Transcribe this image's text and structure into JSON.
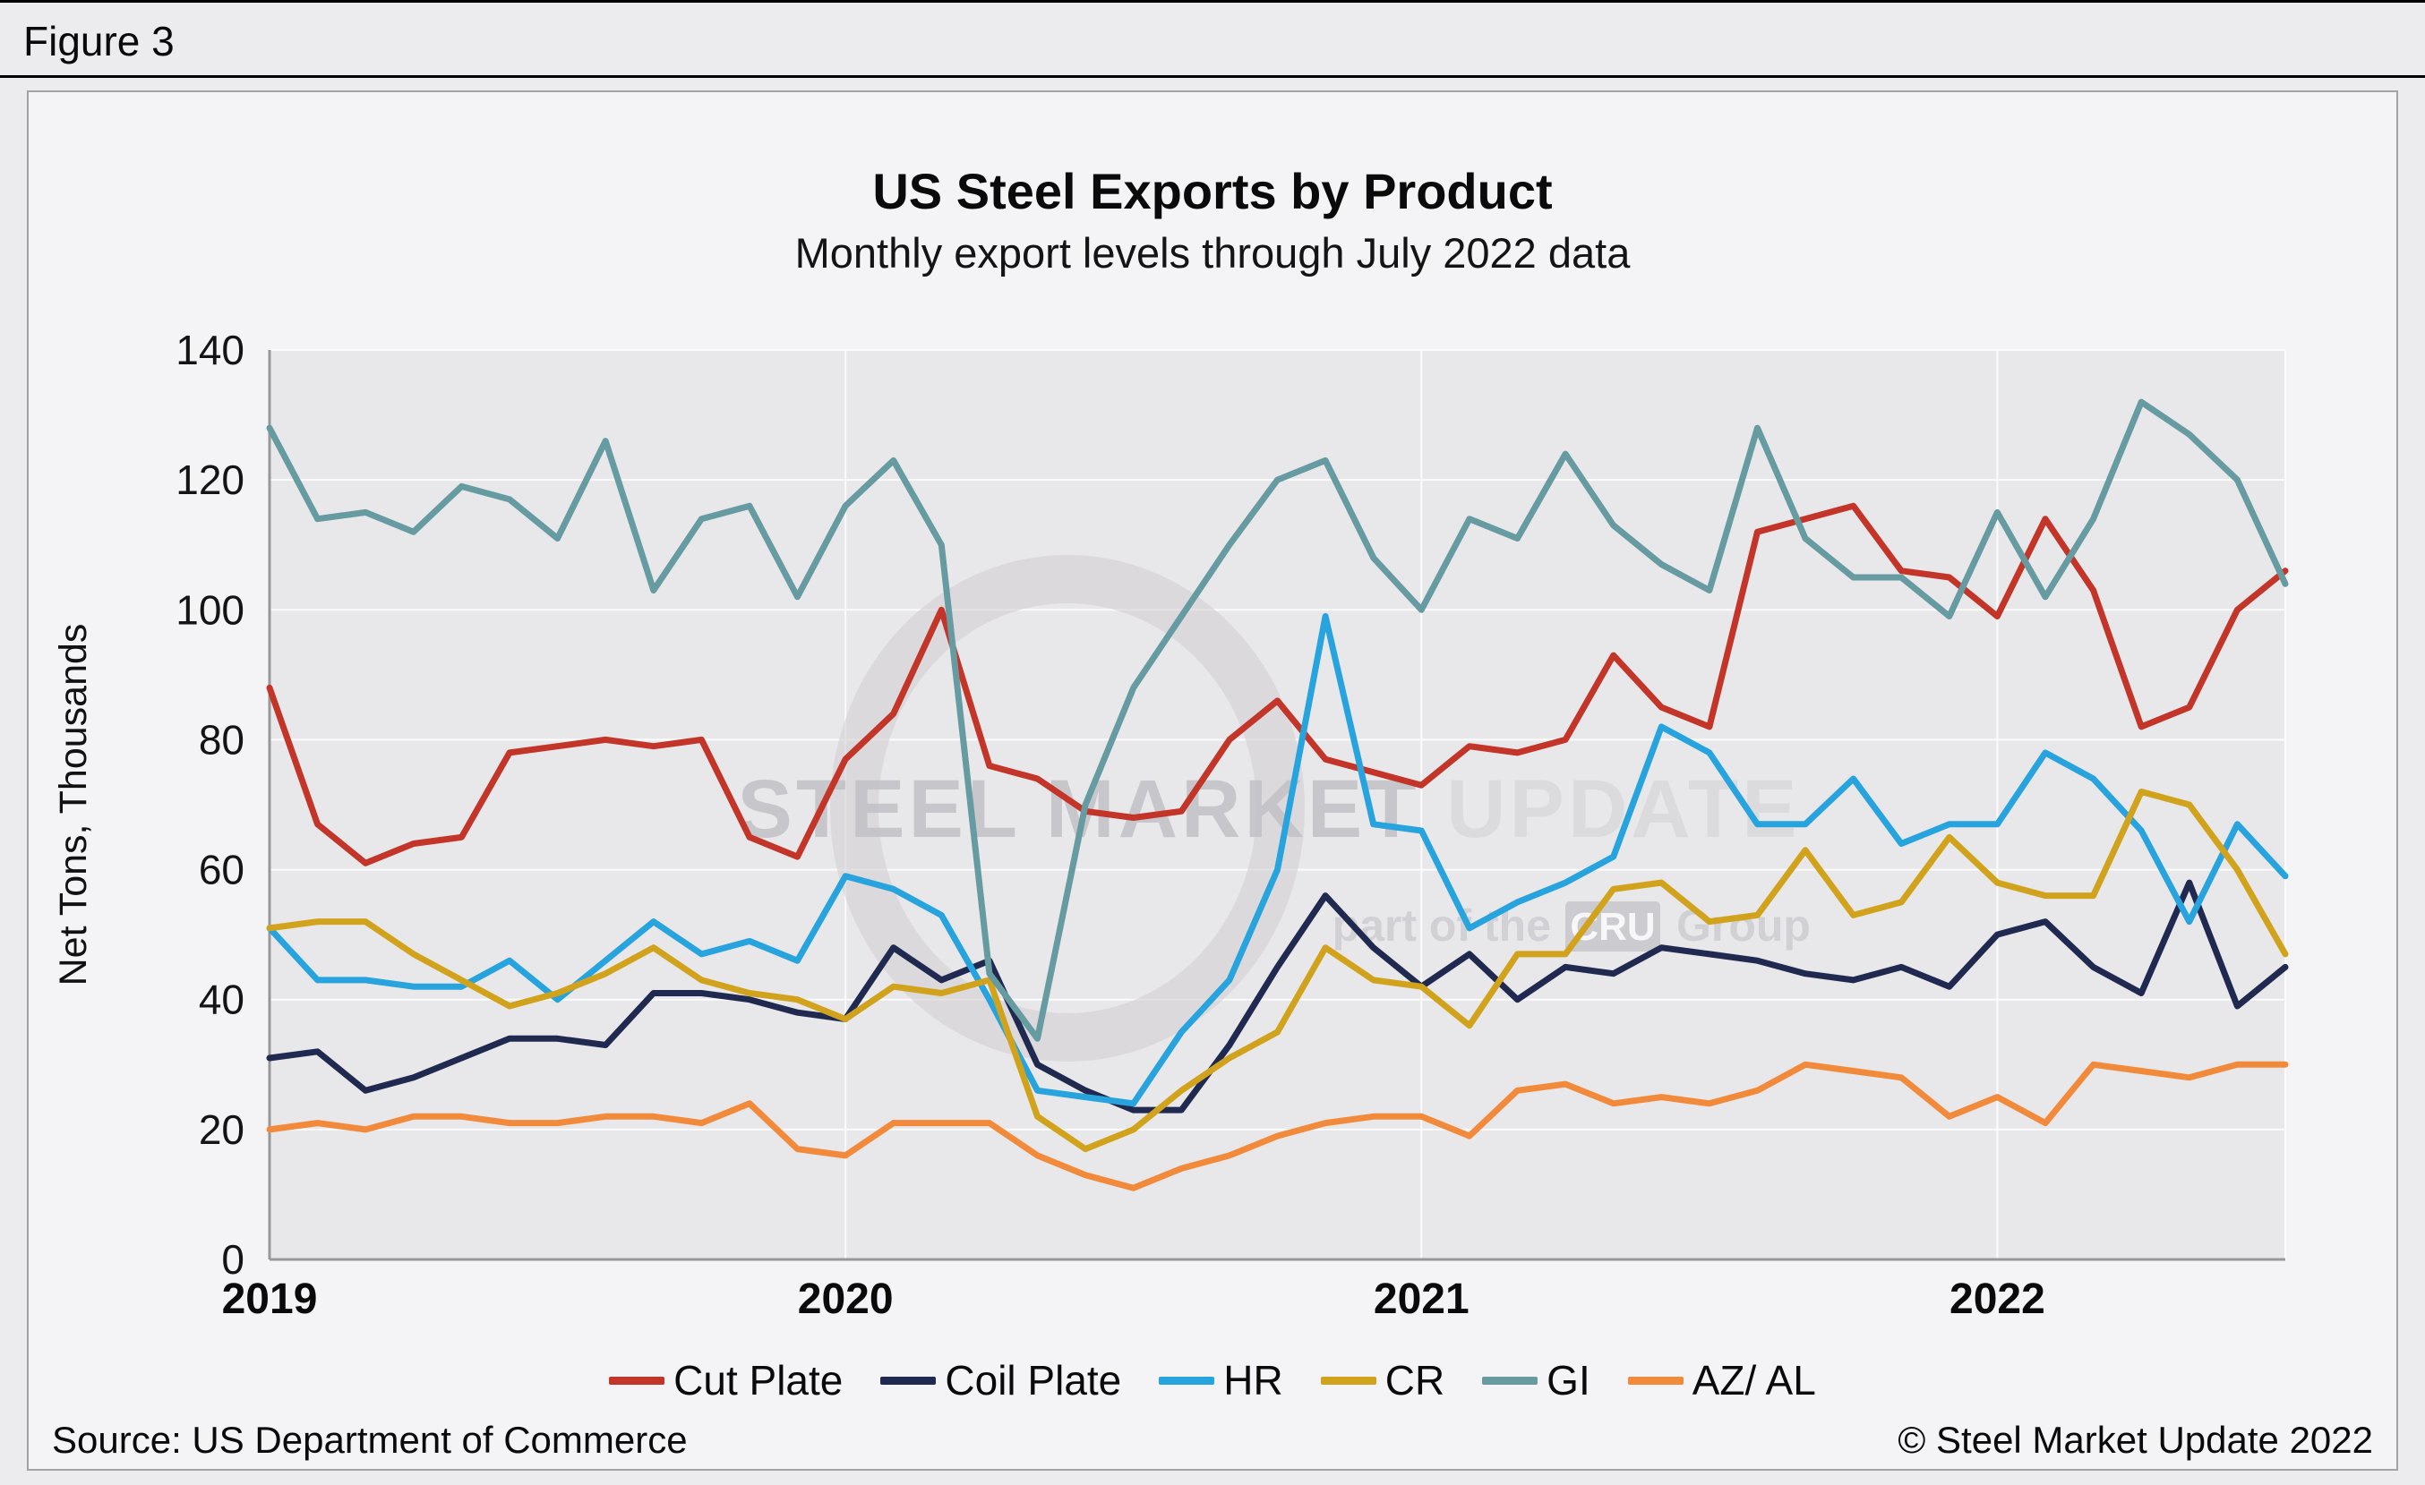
{
  "figure_label": "Figure 3",
  "title": "US Steel Exports by Product",
  "subtitle": "Monthly export levels through July 2022 data",
  "source": "Source: US Department of Commerce",
  "copyright": "© Steel Market Update 2022",
  "watermark": {
    "brand_strong": "STEEL MARKET",
    "brand_light": "UPDATE",
    "tagline_pre": "part of the",
    "tagline_box": "CRU",
    "tagline_post": "Group"
  },
  "chart_data": {
    "type": "line",
    "title": "US Steel Exports by Product",
    "subtitle": "Monthly export levels through July 2022 data",
    "ylabel": "Net Tons, Thousands",
    "xlabel": "",
    "ylim": [
      0,
      140
    ],
    "ytick_step": 20,
    "grid": true,
    "legend_position": "bottom",
    "x_year_labels": [
      "2019",
      "2020",
      "2021",
      "2022"
    ],
    "x_range": [
      "2019-01",
      "2022-07"
    ],
    "x_frequency": "monthly",
    "series": [
      {
        "name": "Cut Plate",
        "color": "#c23528",
        "values": [
          88,
          67,
          61,
          64,
          65,
          78,
          79,
          80,
          79,
          80,
          65,
          62,
          77,
          84,
          100,
          76,
          74,
          69,
          68,
          69,
          80,
          86,
          77,
          75,
          73,
          79,
          78,
          80,
          93,
          85,
          82,
          112,
          114,
          116,
          106,
          105,
          99,
          114,
          103,
          82,
          85,
          100,
          106
        ]
      },
      {
        "name": "Coil Plate",
        "color": "#20294f",
        "values": [
          31,
          32,
          26,
          28,
          31,
          34,
          34,
          33,
          41,
          41,
          40,
          38,
          37,
          48,
          43,
          46,
          30,
          26,
          23,
          23,
          33,
          45,
          56,
          48,
          42,
          47,
          40,
          45,
          44,
          48,
          47,
          46,
          44,
          43,
          45,
          42,
          50,
          52,
          45,
          41,
          58,
          39,
          45
        ]
      },
      {
        "name": "HR",
        "color": "#27a3dd",
        "values": [
          51,
          43,
          43,
          42,
          42,
          46,
          40,
          46,
          52,
          47,
          49,
          46,
          59,
          57,
          53,
          40,
          26,
          25,
          24,
          35,
          43,
          60,
          99,
          67,
          66,
          51,
          55,
          58,
          62,
          82,
          78,
          67,
          67,
          74,
          64,
          67,
          67,
          78,
          74,
          66,
          52,
          67,
          59
        ]
      },
      {
        "name": "CR",
        "color": "#d1a31d",
        "values": [
          51,
          52,
          52,
          47,
          43,
          39,
          41,
          44,
          48,
          43,
          41,
          40,
          37,
          42,
          41,
          43,
          22,
          17,
          20,
          26,
          31,
          35,
          48,
          43,
          42,
          36,
          47,
          47,
          57,
          58,
          52,
          53,
          63,
          53,
          55,
          65,
          58,
          56,
          56,
          72,
          70,
          60,
          47
        ]
      },
      {
        "name": "GI",
        "color": "#659ba1",
        "values": [
          128,
          114,
          115,
          112,
          119,
          117,
          111,
          126,
          103,
          114,
          116,
          102,
          116,
          123,
          110,
          44,
          34,
          70,
          88,
          99,
          110,
          120,
          123,
          108,
          100,
          114,
          111,
          124,
          113,
          107,
          103,
          128,
          111,
          105,
          105,
          99,
          115,
          102,
          114,
          132,
          127,
          120,
          104
        ]
      },
      {
        "name": "AZ/ AL",
        "color": "#f28a3c",
        "values": [
          20,
          21,
          20,
          22,
          22,
          21,
          21,
          22,
          22,
          21,
          24,
          17,
          16,
          21,
          21,
          21,
          16,
          13,
          11,
          14,
          16,
          19,
          21,
          22,
          22,
          19,
          26,
          27,
          24,
          25,
          24,
          26,
          30,
          29,
          28,
          22,
          25,
          21,
          30,
          29,
          28,
          30,
          30
        ]
      }
    ]
  }
}
